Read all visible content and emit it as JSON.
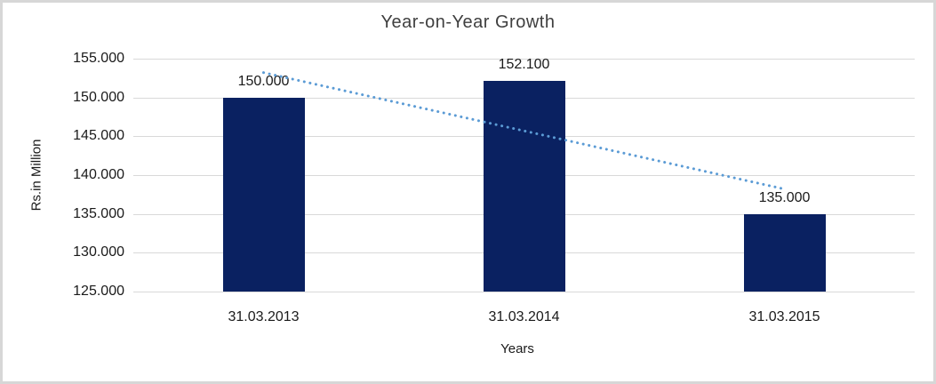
{
  "chart_data": {
    "type": "bar",
    "title": "Year-on-Year Growth",
    "xlabel": "Years",
    "ylabel": "Rs.in Million",
    "categories": [
      "31.03.2013",
      "31.03.2014",
      "31.03.2015"
    ],
    "values": [
      150.0,
      152.1,
      135.0
    ],
    "data_labels": [
      "150.000",
      "152.100",
      "135.000"
    ],
    "y_ticks": [
      155,
      150,
      145,
      140,
      135,
      130,
      125
    ],
    "y_tick_labels": [
      "155.000",
      "150.000",
      "145.000",
      "140.000",
      "135.000",
      "130.000",
      "125.000"
    ],
    "ylim": [
      125,
      155
    ],
    "grid": true,
    "legend_position": "none",
    "trendline": {
      "type": "linear",
      "style": "dotted"
    },
    "colors": {
      "bar": "#0A2161",
      "trendline": "#5B9BD5",
      "gridline": "#D9D9D9",
      "frame_border": "#D7D7D7",
      "title_text": "#3F3F3F",
      "label_text": "#1A1A1A"
    }
  }
}
